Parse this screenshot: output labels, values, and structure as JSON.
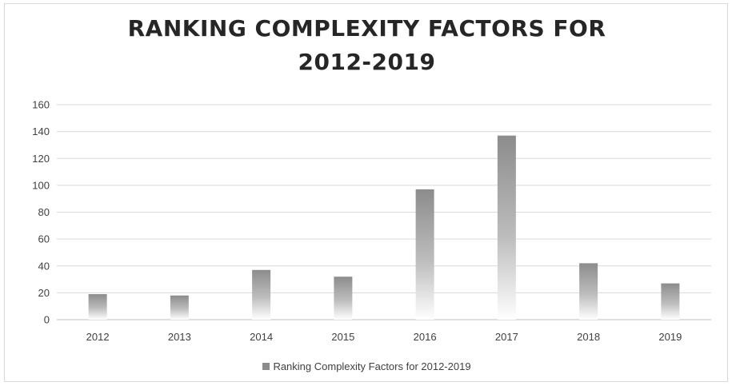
{
  "chart_data": {
    "type": "bar",
    "title_lines": [
      "RANKING COMPLEXITY FACTORS FOR",
      "2012-2019"
    ],
    "categories": [
      "2012",
      "2013",
      "2014",
      "2015",
      "2016",
      "2017",
      "2018",
      "2019"
    ],
    "series": [
      {
        "name": "Ranking Complexity Factors for 2012-2019",
        "values": [
          19,
          18,
          37,
          32,
          97,
          137,
          42,
          27
        ]
      }
    ],
    "ylim": [
      0,
      160
    ],
    "yticks": [
      "0",
      "20",
      "40",
      "60",
      "80",
      "100",
      "120",
      "140",
      "160"
    ],
    "grid": true,
    "legend_position": "bottom",
    "colors": {
      "bar": "#8c8c8c",
      "bar_fade": "#ffffff",
      "grid": "#d9d9d9",
      "text": "#404040",
      "title": "#262626"
    }
  }
}
